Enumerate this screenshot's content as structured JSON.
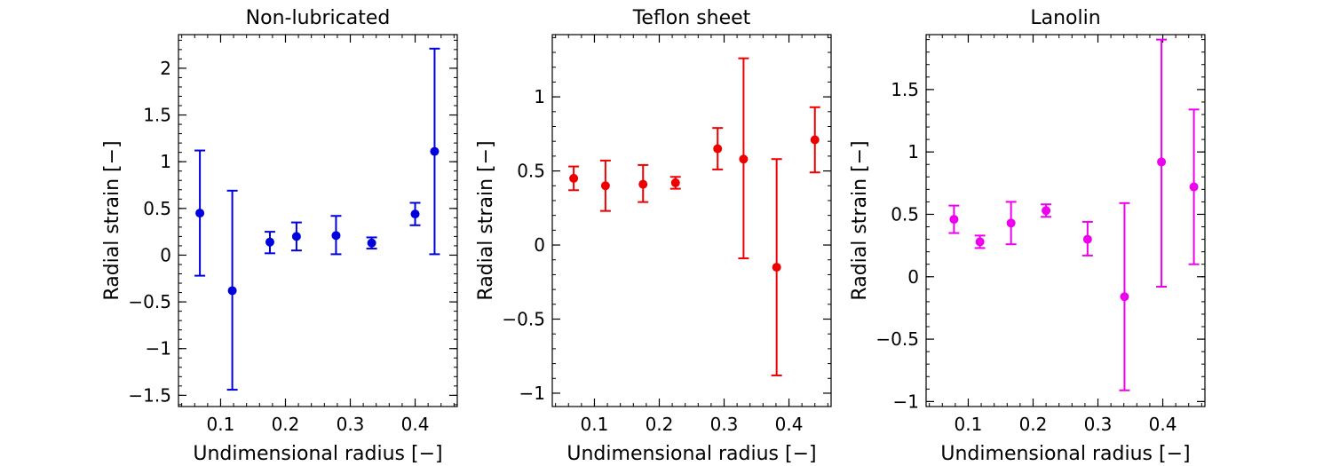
{
  "chart_data": [
    {
      "type": "scatter",
      "title": "Non-lubricated",
      "xlabel": "Undimensional radius [−]",
      "ylabel": "Radial strain [−]",
      "xlim": [
        0.035,
        0.465
      ],
      "ylim": [
        -1.62,
        2.36
      ],
      "xticks": [
        0.1,
        0.2,
        0.3,
        0.4
      ],
      "xtick_labels": [
        "0.1",
        "0.2",
        "0.3",
        "0.4"
      ],
      "yticks": [
        -1.5,
        -1,
        -0.5,
        0,
        0.5,
        1,
        1.5,
        2
      ],
      "ytick_labels": [
        "−1.5",
        "−1",
        "−0.5",
        "0",
        "0.5",
        "1",
        "1.5",
        "2"
      ],
      "color": "#0000dd",
      "series": [
        {
          "x": [
            0.068,
            0.118,
            0.176,
            0.217,
            0.278,
            0.333,
            0.4,
            0.43
          ],
          "y": [
            0.45,
            -0.38,
            0.14,
            0.2,
            0.21,
            0.13,
            0.44,
            1.11
          ],
          "err_low": [
            -0.22,
            -1.44,
            0.02,
            0.05,
            0.01,
            0.07,
            0.32,
            0.01
          ],
          "err_high": [
            1.12,
            0.69,
            0.25,
            0.35,
            0.42,
            0.19,
            0.56,
            2.21
          ]
        }
      ]
    },
    {
      "type": "scatter",
      "title": "Teflon sheet",
      "xlabel": "Undimensional radius [−]",
      "ylabel": "Radial strain [−]",
      "xlim": [
        0.035,
        0.465
      ],
      "ylim": [
        -1.09,
        1.42
      ],
      "xticks": [
        0.1,
        0.2,
        0.3,
        0.4
      ],
      "xtick_labels": [
        "0.1",
        "0.2",
        "0.3",
        "0.4"
      ],
      "yticks": [
        -1,
        -0.5,
        0,
        0.5,
        1
      ],
      "ytick_labels": [
        "−1",
        "−0.5",
        "0",
        "0.5",
        "1"
      ],
      "color": "#ee0000",
      "series": [
        {
          "x": [
            0.068,
            0.117,
            0.175,
            0.225,
            0.29,
            0.33,
            0.381,
            0.44
          ],
          "y": [
            0.45,
            0.4,
            0.41,
            0.42,
            0.65,
            0.58,
            -0.15,
            0.71
          ],
          "err_low": [
            0.37,
            0.23,
            0.29,
            0.38,
            0.51,
            -0.09,
            -0.88,
            0.49
          ],
          "err_high": [
            0.53,
            0.57,
            0.54,
            0.46,
            0.79,
            1.26,
            0.58,
            0.93
          ]
        }
      ]
    },
    {
      "type": "scatter",
      "title": "Lanolin",
      "xlabel": "Undimensional radius [−]",
      "ylabel": "Radial strain [−]",
      "xlim": [
        0.035,
        0.465
      ],
      "ylim": [
        -1.04,
        1.94
      ],
      "xticks": [
        0.1,
        0.2,
        0.3,
        0.4
      ],
      "xtick_labels": [
        "0.1",
        "0.2",
        "0.3",
        "0.4"
      ],
      "yticks": [
        -1,
        -0.5,
        0,
        0.5,
        1,
        1.5
      ],
      "ytick_labels": [
        "−1",
        "−0.5",
        "0",
        "0.5",
        "1",
        "1.5"
      ],
      "color": "#ee00ee",
      "series": [
        {
          "x": [
            0.078,
            0.118,
            0.166,
            0.22,
            0.284,
            0.341,
            0.398,
            0.448
          ],
          "y": [
            0.46,
            0.28,
            0.43,
            0.53,
            0.3,
            -0.16,
            0.92,
            0.72
          ],
          "err_low": [
            0.35,
            0.23,
            0.26,
            0.48,
            0.17,
            -0.91,
            -0.08,
            0.1
          ],
          "err_high": [
            0.57,
            0.33,
            0.6,
            0.58,
            0.44,
            0.59,
            1.9,
            1.34
          ]
        }
      ]
    }
  ]
}
